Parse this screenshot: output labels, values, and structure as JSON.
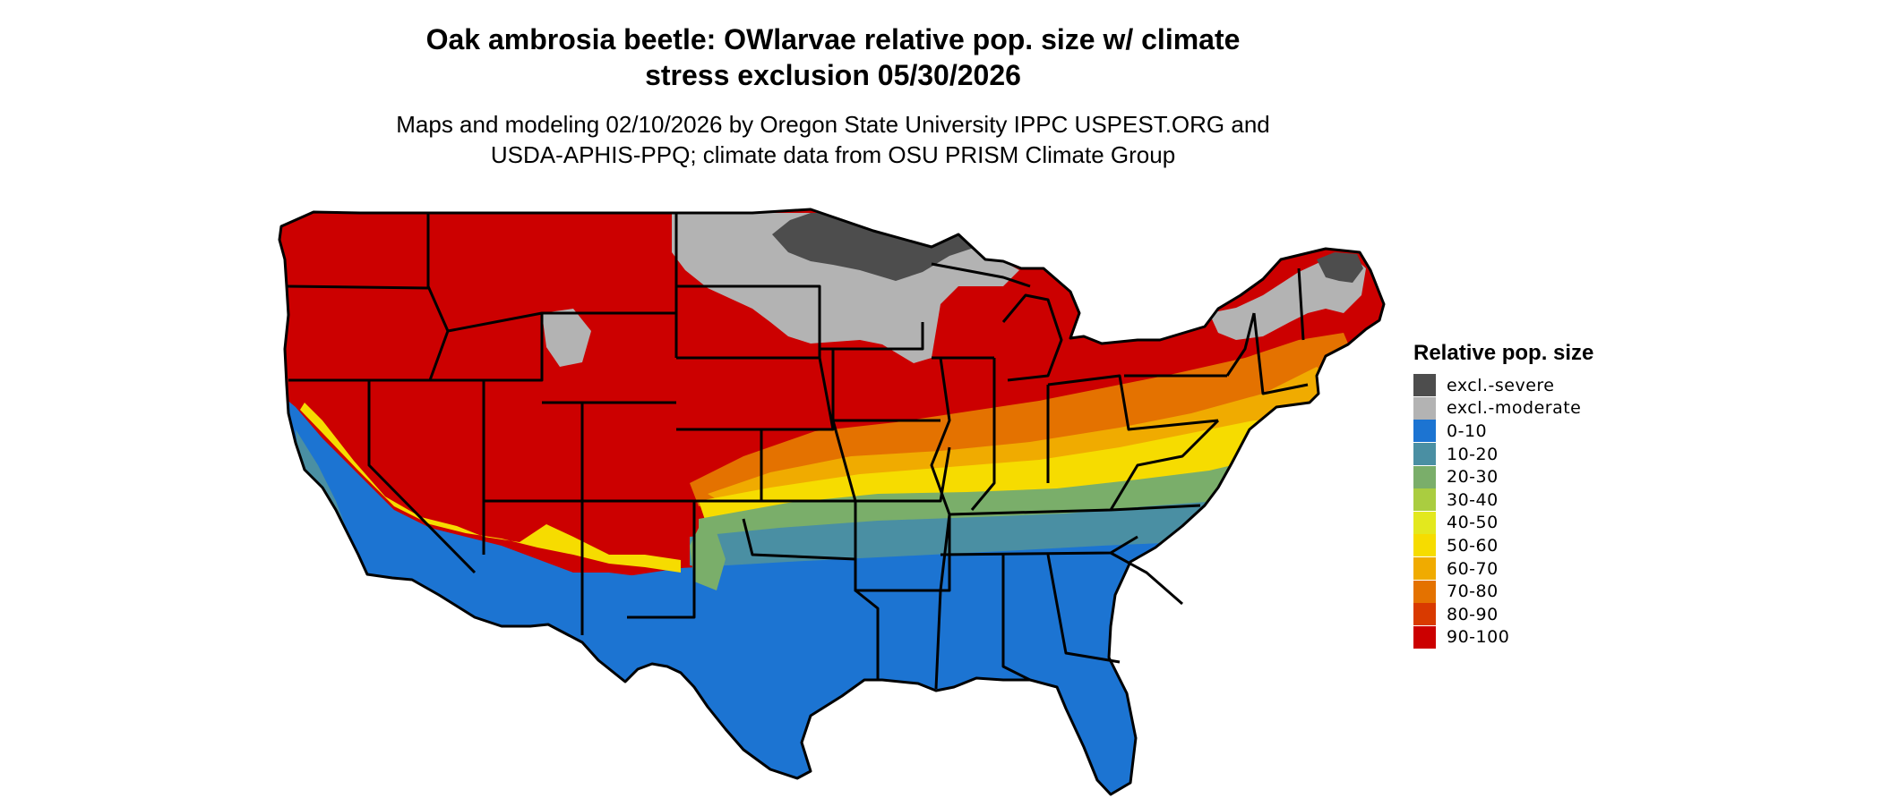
{
  "title_line1": "Oak ambrosia beetle: OWlarvae relative pop. size w/ climate",
  "title_line2": "stress exclusion 05/30/2026",
  "subtitle_line1": "Maps and modeling 02/10/2026 by Oregon State University IPPC USPEST.ORG and",
  "subtitle_line2": "USDA-APHIS-PPQ; climate data from OSU PRISM Climate Group",
  "legend": {
    "title": "Relative pop. size",
    "items": [
      {
        "label": "excl.-severe",
        "color": "#4d4d4d"
      },
      {
        "label": "excl.-moderate",
        "color": "#b3b3b3"
      },
      {
        "label": "0-10",
        "color": "#1c74d2"
      },
      {
        "label": "10-20",
        "color": "#4a8fa3"
      },
      {
        "label": "20-30",
        "color": "#7aae6a"
      },
      {
        "label": "30-40",
        "color": "#aacd40"
      },
      {
        "label": "40-50",
        "color": "#e3e81e"
      },
      {
        "label": "50-60",
        "color": "#f6dc00"
      },
      {
        "label": "60-70",
        "color": "#f0ab00"
      },
      {
        "label": "70-80",
        "color": "#e47200"
      },
      {
        "label": "80-90",
        "color": "#d93a00"
      },
      {
        "label": "90-100",
        "color": "#cc0000"
      }
    ]
  },
  "map": {
    "region": "contiguous United States",
    "colors": {
      "severe": "#4d4d4d",
      "moderate": "#b3b3b3",
      "c0_10": "#1c74d2",
      "c10_20": "#4a8fa3",
      "c20_30": "#7aae6a",
      "c30_40": "#aacd40",
      "c50_60": "#f6dc00",
      "c60_70": "#f0ab00",
      "c70_80": "#e47200",
      "c90_100": "#cc0000",
      "border": "#000000"
    }
  }
}
